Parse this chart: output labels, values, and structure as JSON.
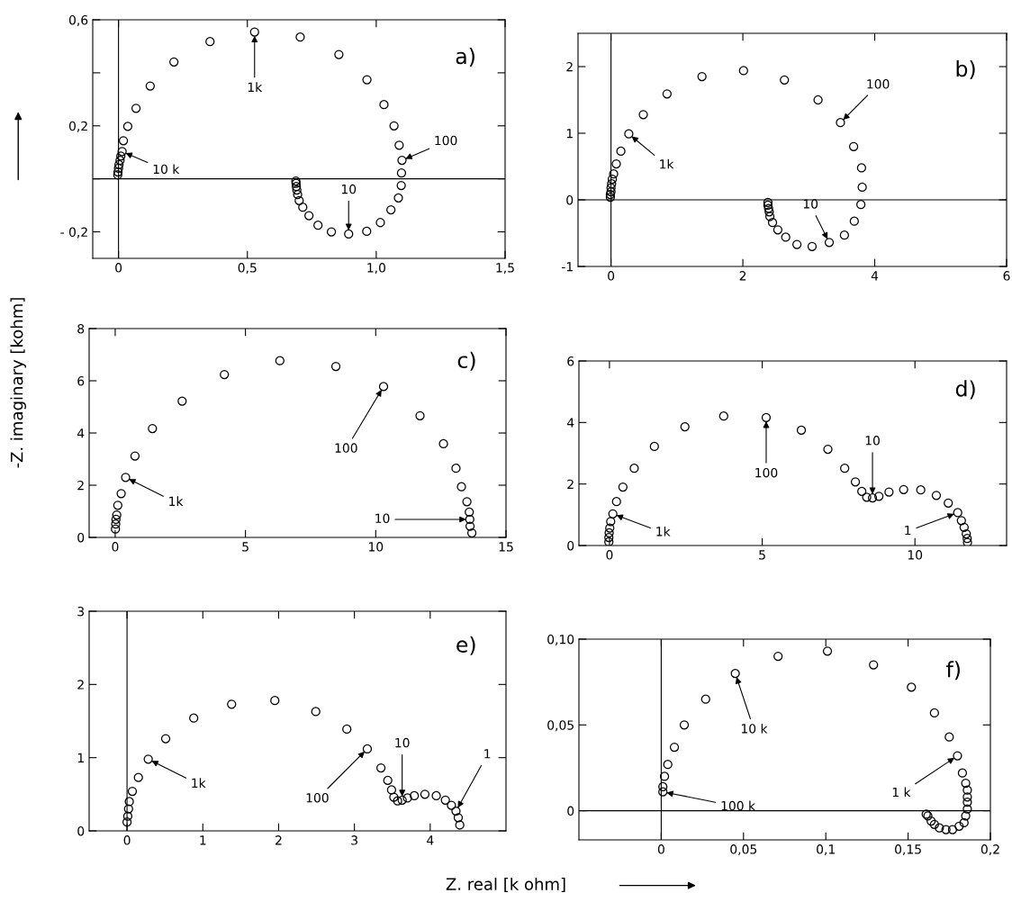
{
  "chart_data": [
    {
      "type": "scatter",
      "xlabel": "Z. real [k ohm]",
      "ylabel": "-Z. imaginary [kohm]",
      "marker": "circle",
      "grid": false,
      "legend": false,
      "xlim": [
        -0.1,
        1.5
      ],
      "ylim": [
        -0.3,
        0.6
      ],
      "xticks": [
        {
          "value": 0,
          "label": "0"
        },
        {
          "value": 0.5,
          "label": "0,5"
        },
        {
          "value": 1.0,
          "label": "1,0"
        },
        {
          "value": 1.5,
          "label": "1,5"
        }
      ],
      "yticks": [
        {
          "value": 0.6,
          "label": "0,6"
        },
        {
          "value": 0.4,
          "label": null
        },
        {
          "value": 0.2,
          "label": "0,2"
        },
        {
          "value": 0,
          "label": null
        },
        {
          "value": -0.2,
          "label": "- 0,2"
        }
      ],
      "ref_lines": [
        {
          "axis": "x",
          "value": 0
        },
        {
          "axis": "y",
          "value": 0
        }
      ],
      "series": [
        {
          "color": "#000000",
          "x": [
            -0.003,
            -0.002,
            0.0,
            0.002,
            0.006,
            0.009,
            0.014,
            0.019,
            0.036,
            0.068,
            0.123,
            0.215,
            0.355,
            0.528,
            0.705,
            0.855,
            0.964,
            1.03,
            1.069,
            1.089,
            1.1,
            1.098,
            1.097,
            1.086,
            1.057,
            1.016,
            0.963,
            0.893,
            0.826,
            0.774,
            0.739,
            0.715,
            0.701,
            0.695,
            0.692,
            0.69,
            0.689,
            0.688
          ],
          "values": [
            0.015,
            0.026,
            0.04,
            0.054,
            0.07,
            0.086,
            0.103,
            0.144,
            0.198,
            0.266,
            0.35,
            0.441,
            0.518,
            0.554,
            0.535,
            0.469,
            0.374,
            0.28,
            0.2,
            0.127,
            0.07,
            0.022,
            -0.025,
            -0.072,
            -0.117,
            -0.165,
            -0.198,
            -0.208,
            -0.2,
            -0.175,
            -0.139,
            -0.107,
            -0.082,
            -0.059,
            -0.042,
            -0.029,
            -0.017,
            -0.008
          ]
        }
      ],
      "annotations": [
        {
          "text": "1k",
          "x": 0.528,
          "y": 0.554
        },
        {
          "text": "10 k",
          "x": 0.014,
          "y": 0.103
        },
        {
          "text": "100",
          "x": 1.1,
          "y": 0.07
        },
        {
          "text": "10",
          "x": 0.893,
          "y": -0.208
        },
        "a)"
      ]
    },
    {
      "type": "scatter",
      "marker": "circle",
      "grid": false,
      "legend": false,
      "xlim": [
        -0.5,
        6
      ],
      "ylim": [
        -1,
        2.5
      ],
      "xticks": [
        0,
        2,
        4,
        6
      ],
      "yticks": [
        -1,
        0,
        1,
        2
      ],
      "ref_lines": [
        {
          "axis": "x",
          "value": 0
        },
        {
          "axis": "y",
          "value": 0
        }
      ],
      "series": [
        {
          "color": "#000000",
          "x": [
            -0.01,
            -0.01,
            0.0,
            0.0,
            0.01,
            0.02,
            0.04,
            0.08,
            0.15,
            0.27,
            0.49,
            0.85,
            1.38,
            2.01,
            2.63,
            3.14,
            3.48,
            3.68,
            3.8,
            3.81,
            3.79,
            3.69,
            3.54,
            3.31,
            3.05,
            2.82,
            2.65,
            2.53,
            2.45,
            2.41,
            2.4,
            2.39,
            2.38,
            2.38
          ],
          "values": [
            0.04,
            0.08,
            0.12,
            0.18,
            0.24,
            0.31,
            0.39,
            0.54,
            0.73,
            0.99,
            1.28,
            1.59,
            1.85,
            1.94,
            1.8,
            1.5,
            1.16,
            0.8,
            0.48,
            0.19,
            -0.07,
            -0.32,
            -0.53,
            -0.64,
            -0.7,
            -0.67,
            -0.56,
            -0.45,
            -0.34,
            -0.25,
            -0.18,
            -0.13,
            -0.08,
            -0.04
          ]
        }
      ],
      "annotations": [
        {
          "text": "1k",
          "x": 0.27,
          "y": 0.99
        },
        {
          "text": "100",
          "x": 3.48,
          "y": 1.16
        },
        {
          "text": "10",
          "x": 3.31,
          "y": -0.64
        },
        "b)"
      ]
    },
    {
      "type": "scatter",
      "marker": "circle",
      "grid": false,
      "legend": false,
      "xlim": [
        -1,
        15
      ],
      "ylim": [
        0,
        8
      ],
      "xticks": [
        0,
        5,
        10,
        15
      ],
      "yticks": [
        0,
        2,
        4,
        6,
        8
      ],
      "series": [
        {
          "color": "#000000",
          "x": [
            0.01,
            0.02,
            0.03,
            0.06,
            0.1,
            0.23,
            0.4,
            0.76,
            1.43,
            2.57,
            4.19,
            6.32,
            8.47,
            10.3,
            11.7,
            12.6,
            13.08,
            13.29,
            13.5,
            13.59,
            13.61,
            13.62,
            13.69
          ],
          "values": [
            0.32,
            0.51,
            0.69,
            0.86,
            1.23,
            1.68,
            2.3,
            3.12,
            4.17,
            5.22,
            6.24,
            6.77,
            6.55,
            5.78,
            4.66,
            3.59,
            2.65,
            1.94,
            1.37,
            0.97,
            0.69,
            0.43,
            0.17
          ]
        }
      ],
      "annotations": [
        {
          "text": "1k",
          "x": 0.4,
          "y": 2.3
        },
        {
          "text": "100",
          "x": 10.3,
          "y": 5.78
        },
        {
          "text": "10",
          "x": 13.61,
          "y": 0.69
        },
        "c)"
      ]
    },
    {
      "type": "scatter",
      "marker": "circle",
      "grid": false,
      "legend": false,
      "xlim": [
        -1,
        13
      ],
      "ylim": [
        0,
        6
      ],
      "xticks": [
        0,
        5,
        10
      ],
      "yticks": [
        0,
        2,
        4,
        6
      ],
      "series": [
        {
          "color": "#000000",
          "x": [
            -0.02,
            -0.02,
            -0.01,
            0.01,
            0.04,
            0.11,
            0.23,
            0.44,
            0.81,
            1.47,
            2.47,
            3.74,
            5.13,
            6.28,
            7.15,
            7.7,
            8.05,
            8.26,
            8.42,
            8.61,
            8.82,
            9.15,
            9.63,
            10.19,
            10.7,
            11.09,
            11.4,
            11.52,
            11.61,
            11.68,
            11.71,
            11.72
          ],
          "values": [
            0.12,
            0.26,
            0.41,
            0.57,
            0.78,
            1.03,
            1.43,
            1.9,
            2.51,
            3.22,
            3.86,
            4.21,
            4.16,
            3.75,
            3.13,
            2.51,
            2.07,
            1.76,
            1.57,
            1.55,
            1.6,
            1.74,
            1.82,
            1.81,
            1.63,
            1.38,
            1.07,
            0.81,
            0.59,
            0.38,
            0.23,
            0.1
          ]
        }
      ],
      "annotations": [
        {
          "text": "1k",
          "x": 0.11,
          "y": 1.03
        },
        {
          "text": "100",
          "x": 5.13,
          "y": 4.16
        },
        {
          "text": "10",
          "x": 8.61,
          "y": 1.55
        },
        {
          "text": "1",
          "x": 11.4,
          "y": 1.07
        },
        "d)"
      ]
    },
    {
      "type": "scatter",
      "marker": "circle",
      "grid": false,
      "legend": false,
      "xlim": [
        -0.5,
        5
      ],
      "ylim": [
        0,
        3
      ],
      "xticks": [
        0,
        1,
        2,
        3,
        4
      ],
      "yticks": [
        0,
        1,
        2,
        3
      ],
      "ref_lines": [
        {
          "axis": "x",
          "value": 0
        }
      ],
      "series": [
        {
          "color": "#000000",
          "x": [
            0.0,
            0.01,
            0.02,
            0.03,
            0.07,
            0.15,
            0.28,
            0.51,
            0.88,
            1.38,
            1.95,
            2.49,
            2.9,
            3.17,
            3.35,
            3.44,
            3.49,
            3.52,
            3.57,
            3.63,
            3.7,
            3.79,
            3.93,
            4.08,
            4.2,
            4.28,
            4.34,
            4.37,
            4.39
          ],
          "values": [
            0.12,
            0.2,
            0.3,
            0.4,
            0.54,
            0.73,
            0.98,
            1.26,
            1.54,
            1.73,
            1.78,
            1.63,
            1.39,
            1.12,
            0.86,
            0.69,
            0.56,
            0.46,
            0.41,
            0.42,
            0.45,
            0.48,
            0.5,
            0.48,
            0.42,
            0.35,
            0.27,
            0.18,
            0.08
          ]
        }
      ],
      "annotations": [
        {
          "text": "1k",
          "x": 0.28,
          "y": 0.98
        },
        {
          "text": "100",
          "x": 3.17,
          "y": 1.12
        },
        {
          "text": "10",
          "x": 3.63,
          "y": 0.42
        },
        {
          "text": "1",
          "x": 4.34,
          "y": 0.27
        },
        "e)"
      ]
    },
    {
      "type": "scatter",
      "marker": "circle",
      "grid": false,
      "legend": false,
      "xlim": [
        -0.05,
        0.2
      ],
      "ylim": [
        -0.017,
        0.1
      ],
      "xticks": [
        {
          "value": 0,
          "label": "0"
        },
        {
          "value": 0.05,
          "label": "0,05"
        },
        {
          "value": 0.1,
          "label": "0,1"
        },
        {
          "value": 0.15,
          "label": "0,15"
        },
        {
          "value": 0.2,
          "label": "0,2"
        }
      ],
      "yticks": [
        {
          "value": 0,
          "label": "0"
        },
        {
          "value": 0.05,
          "label": "0,05"
        },
        {
          "value": 0.1,
          "label": "0,10"
        }
      ],
      "ref_lines": [
        {
          "axis": "x",
          "value": 0
        },
        {
          "axis": "y",
          "value": 0
        }
      ],
      "series": [
        {
          "color": "#000000",
          "x": [
            0.001,
            0.001,
            0.002,
            0.004,
            0.008,
            0.014,
            0.027,
            0.045,
            0.071,
            0.101,
            0.129,
            0.152,
            0.166,
            0.175,
            0.18,
            0.183,
            0.185,
            0.186,
            0.186,
            0.186,
            0.186,
            0.185,
            0.184,
            0.181,
            0.177,
            0.173,
            0.169,
            0.166,
            0.164,
            0.162,
            0.161
          ],
          "values": [
            0.011,
            0.014,
            0.02,
            0.027,
            0.037,
            0.05,
            0.065,
            0.08,
            0.09,
            0.093,
            0.085,
            0.072,
            0.057,
            0.043,
            0.032,
            0.022,
            0.016,
            0.012,
            0.008,
            0.005,
            0.001,
            -0.003,
            -0.007,
            -0.009,
            -0.011,
            -0.011,
            -0.01,
            -0.008,
            -0.006,
            -0.003,
            -0.002
          ]
        }
      ],
      "annotations": [
        {
          "text": "100 k",
          "x": 0.001,
          "y": 0.011
        },
        {
          "text": "10 k",
          "x": 0.045,
          "y": 0.08
        },
        {
          "text": "1 k",
          "x": 0.18,
          "y": 0.032
        },
        "f)"
      ]
    }
  ]
}
